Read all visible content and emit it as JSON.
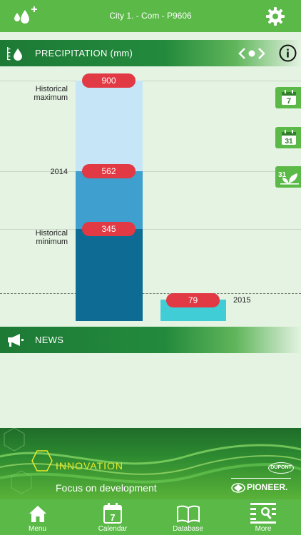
{
  "header": {
    "title": "City 1. - Com - P9606"
  },
  "precipitation": {
    "title": "PRECIPITATION (mm)",
    "historical_maximum_label": "Historical maximum",
    "year_label": "2014",
    "historical_minimum_label": "Historical minimum",
    "current_year_label": "2015",
    "values": {
      "historical_maximum": "900",
      "year_value": "562",
      "historical_minimum": "345",
      "current": "79"
    }
  },
  "news": {
    "title": "NEWS"
  },
  "banner": {
    "headline": "INNOVATION",
    "tagline": "Focus on development",
    "brand_top": "DUPONT",
    "brand_bottom": "PIONEER."
  },
  "nav": {
    "menu": "Menu",
    "calendar": "Calendar",
    "calendar_day": "7",
    "database": "Database",
    "more": "More"
  },
  "side_buttons": {
    "week": "7",
    "month": "31",
    "season": "31"
  },
  "colors": {
    "primary_green": "#5ab947",
    "dark_green": "#1d7a35",
    "pill_red": "#e13a44",
    "bar_light": "#c6e6f7",
    "bar_mid": "#3f9fce",
    "bar_dark": "#0d6b94",
    "bar_current": "#40cdd6",
    "banner_yellow": "#e6ea2a"
  },
  "icons": [
    "water-drop-plus-icon",
    "gear-icon",
    "rain-gauge-icon",
    "previous-chevron-icon",
    "page-dot-icon",
    "next-chevron-icon",
    "info-icon",
    "calendar-week-icon",
    "calendar-month-icon",
    "calendar-season-icon",
    "megaphone-icon",
    "home-icon",
    "calendar-icon",
    "book-icon",
    "profile-list-icon"
  ]
}
